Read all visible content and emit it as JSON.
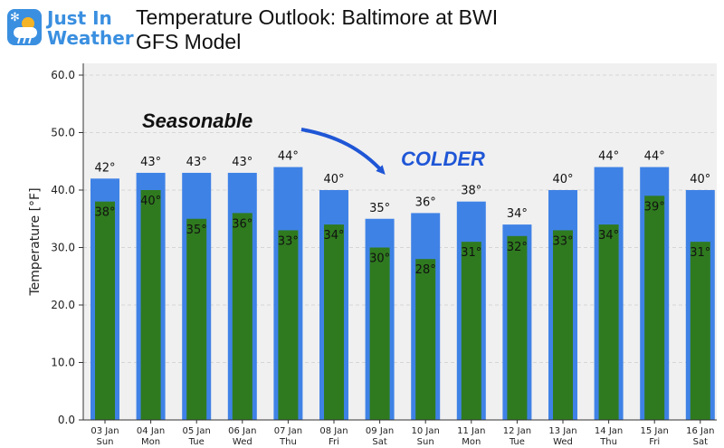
{
  "logo": {
    "line1": "Just In",
    "line2": "Weather"
  },
  "title_line1": "Temperature Outlook: Baltimore at BWI",
  "title_line2": "GFS Model",
  "annotations": {
    "left": "Seasonable",
    "right": "COLDER"
  },
  "chart_data": {
    "type": "bar",
    "ylabel": "Temperature [°F]",
    "ylim": [
      0,
      60
    ],
    "yticks": [
      "0.0",
      "10.0",
      "20.0",
      "30.0",
      "40.0",
      "50.0",
      "60.0"
    ],
    "categories": [
      {
        "date": "03 Jan",
        "day": "Sun"
      },
      {
        "date": "04 Jan",
        "day": "Mon"
      },
      {
        "date": "05 Jan",
        "day": "Tue"
      },
      {
        "date": "06 Jan",
        "day": "Wed"
      },
      {
        "date": "07 Jan",
        "day": "Thu"
      },
      {
        "date": "08 Jan",
        "day": "Fri"
      },
      {
        "date": "09 Jan",
        "day": "Sat"
      },
      {
        "date": "10 Jan",
        "day": "Sun"
      },
      {
        "date": "11 Jan",
        "day": "Mon"
      },
      {
        "date": "12 Jan",
        "day": "Tue"
      },
      {
        "date": "13 Jan",
        "day": "Wed"
      },
      {
        "date": "14 Jan",
        "day": "Thu"
      },
      {
        "date": "15 Jan",
        "day": "Fri"
      },
      {
        "date": "16 Jan",
        "day": "Sat"
      }
    ],
    "series": [
      {
        "values": [
          42,
          43,
          43,
          43,
          44,
          40,
          35,
          36,
          38,
          34,
          40,
          44,
          44,
          40
        ],
        "color": "#3f82e6",
        "label_suffix": "°"
      },
      {
        "values": [
          38,
          40,
          35,
          36,
          33,
          34,
          30,
          28,
          31,
          32,
          33,
          34,
          39,
          31
        ],
        "color": "#2f7a1f",
        "label_suffix": "°"
      }
    ],
    "grid": true,
    "background": "#f0f0f0"
  },
  "colors": {
    "high_bar": "#3f82e6",
    "low_bar": "#2f7a1f",
    "colder_text": "#1f56d6",
    "logo_blue": "#3a8fe0"
  }
}
